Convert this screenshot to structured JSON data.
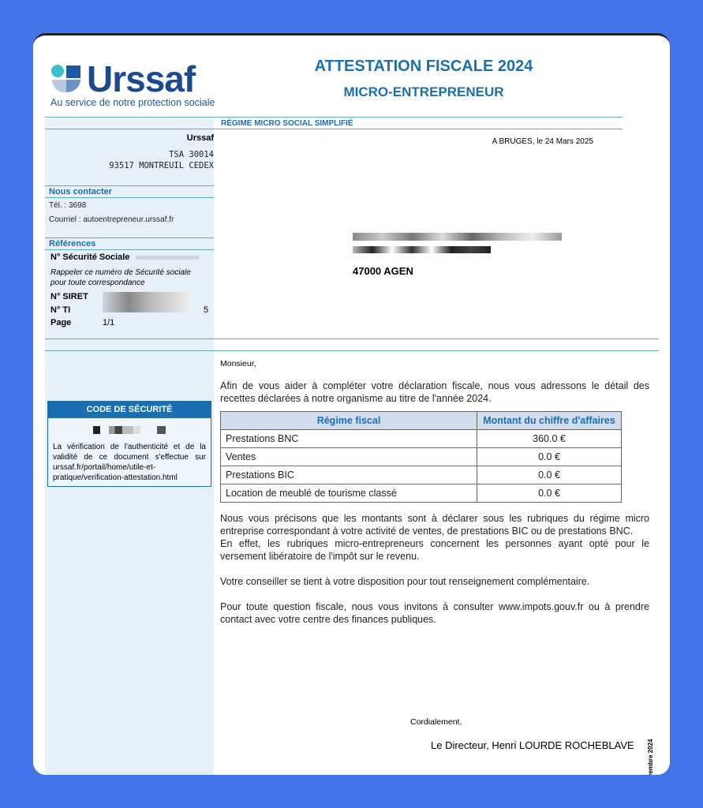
{
  "logo": {
    "name": "Urssaf",
    "tagline": "Au service de notre protection sociale"
  },
  "header": {
    "title": "ATTESTATION FISCALE 2024",
    "subtitle": "MICRO-ENTREPRENEUR",
    "regime": "RÉGIME MICRO SOCIAL SIMPLIFIÉ"
  },
  "sender": {
    "name": "Urssaf",
    "line1": "TSA 30014",
    "line2": "93517 MONTREUIL CEDEX"
  },
  "place_date": "A BRUGES, le 24 Mars 2025",
  "contact": {
    "heading": "Nous contacter",
    "tel": "Tél. :  3698",
    "email": "Courriel : autoentrepreneur.urssaf.fr"
  },
  "references": {
    "heading": "Références",
    "ss_label": "N° Sécurité Sociale",
    "ss_note": "Rappeler ce numéro de Sécurité sociale pour toute correspondance",
    "siret_label": "N° SIRET",
    "ti_label": "N° TI",
    "ti_suffix": "5",
    "page_label": "Page",
    "page_value": "1/1"
  },
  "recipient": {
    "city": "47000 AGEN"
  },
  "security": {
    "heading": "CODE DE SÉCURITÉ",
    "text": "La vérification de l'authenticité et de la validité de ce document s'effectue sur urssaf.fr/portail/home/utile-et-pratique/verification-attestation.html"
  },
  "letter": {
    "greeting": "Monsieur,",
    "intro": "Afin de vous aider à compléter votre déclaration fiscale, nous vous adressons le détail des recettes déclarées à notre organisme au titre de l'année 2024.",
    "table": {
      "headers": [
        "Régime fiscal",
        "Montant du chiffre d'affaires"
      ],
      "rows": [
        [
          "Prestations BNC",
          "360.0 €"
        ],
        [
          "Ventes",
          "0.0 €"
        ],
        [
          "Prestations BIC",
          "0.0 €"
        ],
        [
          "Location de meublé de tourisme classé",
          "0.0 €"
        ]
      ]
    },
    "p1": "Nous vous précisons que les montants sont à déclarer sous les rubriques du régime micro entreprise correspondant à votre activité de ventes, de prestations BIC ou de prestations BNC.",
    "p2": "En effet, les rubriques micro-entrepreneurs concernent les personnes ayant opté pour le versement libératoire de l'impôt sur le revenu.",
    "p3": "Votre conseiller se tient à votre disposition pour tout renseignement complémentaire.",
    "p4": "Pour toute question fiscale, nous vous invitons à consulter www.impots.gouv.fr ou à prendre contact avec votre centre des finances publiques.",
    "closing": "Cordialement,",
    "signature": "Le Directeur, Henri LOURDE ROCHEBLAVE",
    "vertical": "vembre 2024"
  }
}
